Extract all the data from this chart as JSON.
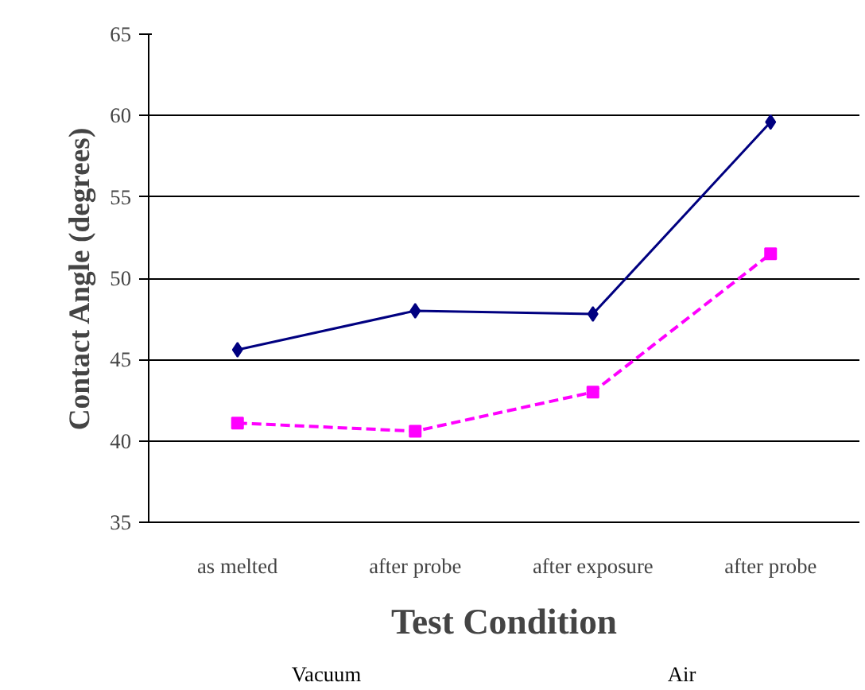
{
  "chart_data": {
    "type": "line",
    "xlabel": "Test Condition",
    "ylabel": "Contact Angle (degrees)",
    "categories": [
      "as melted",
      "after probe",
      "after exposure",
      "after probe"
    ],
    "series": [
      {
        "color": "#000080",
        "values": [
          45.6,
          48.0,
          47.8,
          59.6
        ],
        "marker": "diamond",
        "line_style": "solid"
      },
      {
        "color": "#ff00ff",
        "values": [
          41.1,
          40.6,
          43.0,
          51.5
        ],
        "marker": "square",
        "line_style": "dashed"
      }
    ],
    "ylim": [
      35,
      65
    ],
    "yticks": [
      35,
      40,
      45,
      50,
      55,
      60,
      65
    ],
    "grid": "y",
    "annotations": [
      "Vacuum",
      "Air"
    ]
  }
}
